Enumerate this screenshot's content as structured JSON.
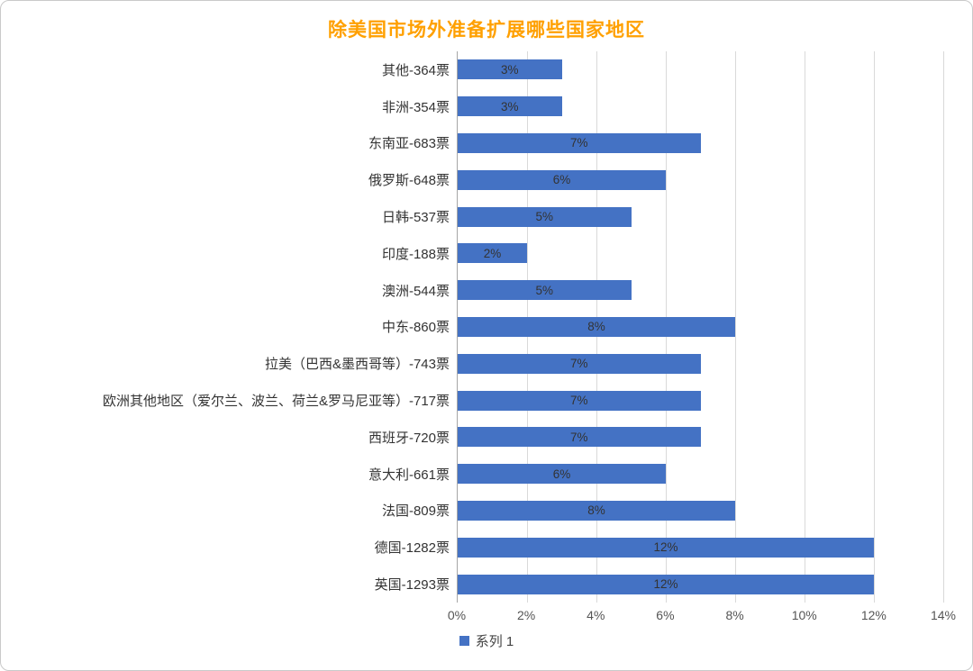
{
  "colors": {
    "title": "#FFA000",
    "bar": "#4472C4",
    "bar_label": "#333333",
    "gridline": "#D9D9D9",
    "axis_line": "#A6A6A6"
  },
  "chart_data": {
    "type": "bar",
    "orientation": "horizontal",
    "title": "除美国市场外准备扩展哪些国家地区",
    "categories": [
      "其他-364票",
      "非洲-354票",
      "东南亚-683票",
      "俄罗斯-648票",
      "日韩-537票",
      "印度-188票",
      "澳洲-544票",
      "中东-860票",
      "拉美（巴西&墨西哥等）-743票",
      "欧洲其他地区（爱尔兰、波兰、荷兰&罗马尼亚等）-717票",
      "西班牙-720票",
      "意大利-661票",
      "法国-809票",
      "德国-1282票",
      "英国-1293票"
    ],
    "values": [
      3,
      3,
      7,
      6,
      5,
      2,
      5,
      8,
      7,
      7,
      7,
      6,
      8,
      12,
      12
    ],
    "value_labels": [
      "3%",
      "3%",
      "7%",
      "6%",
      "5%",
      "2%",
      "5%",
      "8%",
      "7%",
      "7%",
      "7%",
      "6%",
      "8%",
      "12%",
      "12%"
    ],
    "xlabel": "",
    "ylabel": "",
    "xlim": [
      0,
      14
    ],
    "x_ticks": [
      0,
      2,
      4,
      6,
      8,
      10,
      12,
      14
    ],
    "x_tick_labels": [
      "0%",
      "2%",
      "4%",
      "6%",
      "8%",
      "10%",
      "12%",
      "14%"
    ],
    "grid": true,
    "legend_position": "bottom",
    "legend": [
      "系列 1"
    ]
  }
}
